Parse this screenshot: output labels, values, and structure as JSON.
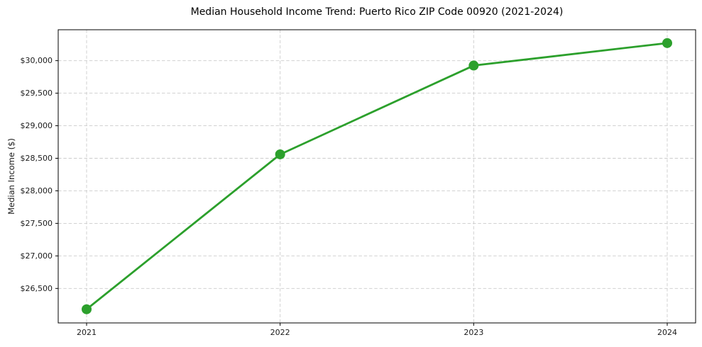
{
  "figure": {
    "title": "Median Household Income Trend: Puerto Rico ZIP Code 00920 (2021-2024)",
    "y_axis_label": "Median Income ($)"
  },
  "chart_data": {
    "type": "line",
    "title": "Median Household Income Trend: Puerto Rico ZIP Code 00920 (2021-2024)",
    "xlabel": "",
    "ylabel": "Median Income ($)",
    "categories": [
      "2021",
      "2022",
      "2023",
      "2024"
    ],
    "series": [
      {
        "name": "Median Household Income",
        "values": [
          26180,
          28560,
          29925,
          30270
        ],
        "color": "#2ca02c",
        "marker": "circle"
      }
    ],
    "ylim": [
      25970,
      30475
    ],
    "yticks": [
      {
        "value": 26500,
        "label": "$26,500"
      },
      {
        "value": 27000,
        "label": "$27,000"
      },
      {
        "value": 27500,
        "label": "$27,500"
      },
      {
        "value": 28000,
        "label": "$28,000"
      },
      {
        "value": 28500,
        "label": "$28,500"
      },
      {
        "value": 29000,
        "label": "$29,000"
      },
      {
        "value": 29500,
        "label": "$29,500"
      },
      {
        "value": 30000,
        "label": "$30,000"
      }
    ],
    "grid": true,
    "grid_style": "dashed",
    "legend_position": "none"
  },
  "colors": {
    "line": "#2ca02c",
    "grid": "#cccccc",
    "spine": "#000000",
    "text": "#1a1a1a",
    "background": "#ffffff"
  }
}
